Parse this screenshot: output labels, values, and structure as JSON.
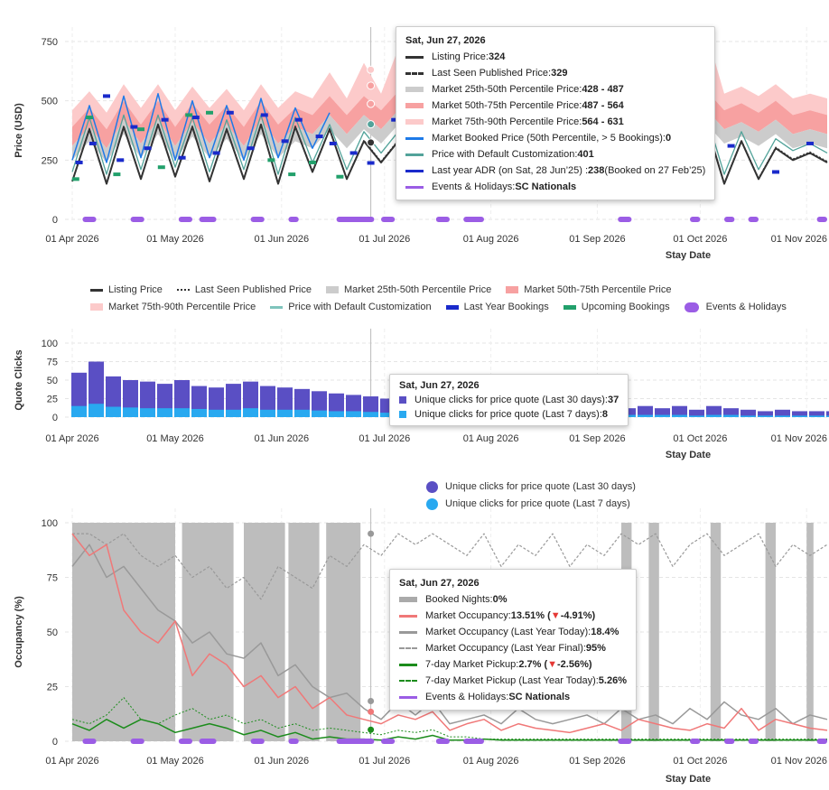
{
  "x_ticks": [
    "01 Apr 2026",
    "01 May 2026",
    "01 Jun 2026",
    "01 Jul 2026",
    "01 Aug 2026",
    "01 Sep 2026",
    "01 Oct 2026",
    "01 Nov 2026"
  ],
  "x_axis_label": "Stay Date",
  "hover_day_label": "Sat, Jun 27, 2026",
  "colors": {
    "listing": "#333333",
    "p25_50": "#cccccc",
    "p50_75": "#f7a1a1",
    "p75_90": "#fccaca",
    "booked": "#1e7ae8",
    "default_custom": "#52a39a",
    "last_year": "#1a2acb",
    "upcoming": "#22a06b",
    "events": "#9b5de5",
    "clicks30": "#5a4fc4",
    "clicks7": "#29a9f0",
    "mkt_occ": "#f07878",
    "ly_today": "#999999",
    "pickup": "#1c8c1c"
  },
  "chart_data": [
    {
      "type": "line",
      "title": "",
      "ylabel": "Price (USD)",
      "xlabel": "Stay Date",
      "ylim": [
        0,
        820
      ],
      "y_ticks": [
        "0",
        "250",
        "500",
        "750"
      ],
      "grid": true,
      "x_day_step": 5,
      "x_start": "2026-04-01",
      "series": {
        "listing": [
          160,
          380,
          150,
          390,
          170,
          400,
          180,
          390,
          160,
          380,
          170,
          400,
          150,
          390,
          200,
          380,
          170,
          330,
          240,
          330,
          250,
          324,
          240,
          260,
          250,
          270,
          240,
          250,
          230,
          260,
          250,
          240,
          260,
          250,
          280,
          260,
          170,
          390,
          150,
          330,
          170,
          300,
          250,
          280,
          240
        ],
        "p25": [
          250,
          330,
          240,
          360,
          260,
          360,
          250,
          350,
          260,
          340,
          250,
          360,
          260,
          330,
          300,
          380,
          300,
          380,
          320,
          400,
          400,
          428,
          330,
          300,
          280,
          300,
          290,
          270,
          280,
          300,
          290,
          270,
          300,
          320,
          320,
          300,
          300,
          400,
          320,
          350,
          310,
          360,
          300,
          320,
          300
        ],
        "p50": [
          310,
          390,
          300,
          420,
          320,
          420,
          310,
          410,
          320,
          400,
          310,
          420,
          320,
          390,
          360,
          440,
          360,
          440,
          380,
          460,
          460,
          487,
          390,
          360,
          340,
          360,
          350,
          330,
          340,
          360,
          350,
          330,
          360,
          380,
          380,
          360,
          360,
          460,
          380,
          410,
          370,
          420,
          360,
          380,
          360
        ],
        "p75": [
          390,
          470,
          380,
          500,
          400,
          500,
          390,
          490,
          400,
          480,
          390,
          500,
          400,
          470,
          440,
          520,
          440,
          520,
          460,
          540,
          540,
          564,
          470,
          440,
          420,
          440,
          430,
          410,
          420,
          440,
          430,
          410,
          440,
          460,
          460,
          440,
          440,
          540,
          460,
          490,
          450,
          500,
          440,
          460,
          440
        ],
        "p90": [
          460,
          540,
          450,
          570,
          470,
          570,
          460,
          560,
          470,
          550,
          460,
          570,
          470,
          540,
          510,
          620,
          510,
          660,
          530,
          720,
          610,
          631,
          540,
          510,
          490,
          510,
          500,
          480,
          490,
          510,
          500,
          480,
          510,
          530,
          530,
          510,
          510,
          780,
          530,
          560,
          520,
          570,
          510,
          530,
          510
        ],
        "default_custom": [
          200,
          430,
          190,
          440,
          210,
          440,
          220,
          430,
          200,
          420,
          210,
          440,
          190,
          430,
          240,
          400,
          210,
          370,
          280,
          370,
          290,
          401,
          280,
          300,
          290,
          310,
          280,
          290,
          270,
          300,
          290,
          280,
          300,
          290,
          320,
          300,
          210,
          430,
          190,
          370,
          210,
          340,
          290,
          320,
          280
        ],
        "booked": [
          250,
          480,
          240,
          520,
          260,
          530,
          250,
          500,
          260,
          480,
          250,
          510,
          260,
          470,
          300,
          450
        ]
      },
      "last_year_bookings": [
        [
          2,
          240
        ],
        [
          6,
          320
        ],
        [
          10,
          520
        ],
        [
          14,
          250
        ],
        [
          18,
          390
        ],
        [
          22,
          300
        ],
        [
          27,
          420
        ],
        [
          32,
          260
        ],
        [
          36,
          430
        ],
        [
          42,
          280
        ],
        [
          46,
          450
        ],
        [
          52,
          300
        ],
        [
          56,
          440
        ],
        [
          62,
          330
        ],
        [
          66,
          420
        ],
        [
          72,
          350
        ],
        [
          76,
          320
        ],
        [
          82,
          280
        ],
        [
          87,
          238
        ],
        [
          94,
          420
        ],
        [
          160,
          300
        ],
        [
          175,
          350
        ],
        [
          192,
          310
        ],
        [
          205,
          200
        ],
        [
          215,
          320
        ]
      ],
      "upcoming_bookings": [
        [
          1,
          170
        ],
        [
          5,
          430
        ],
        [
          13,
          190
        ],
        [
          20,
          380
        ],
        [
          26,
          220
        ],
        [
          34,
          440
        ],
        [
          40,
          450
        ],
        [
          58,
          250
        ],
        [
          64,
          190
        ],
        [
          70,
          240
        ],
        [
          78,
          180
        ]
      ],
      "events": [
        [
          3,
          7
        ],
        [
          17,
          21
        ],
        [
          31,
          35
        ],
        [
          37,
          42
        ],
        [
          52,
          56
        ],
        [
          63,
          66
        ],
        [
          77,
          88
        ],
        [
          90,
          94
        ],
        [
          106,
          110
        ],
        [
          114,
          120
        ],
        [
          159,
          163
        ],
        [
          180,
          183
        ],
        [
          190,
          193
        ],
        [
          197,
          200
        ],
        [
          217,
          220
        ]
      ],
      "legend": [
        "Listing Price",
        "Last Seen Published Price",
        "Market 25th-50th Percentile Price",
        "Market 50th-75th Percentile Price",
        "Market 75th-90th Percentile Price",
        "Price with Default Customization",
        "Last Year Bookings",
        "Upcoming Bookings",
        "Events & Holidays"
      ],
      "tooltip": [
        {
          "label": "Listing Price: ",
          "value": "324"
        },
        {
          "label": "Last Seen Published Price: ",
          "value": "329"
        },
        {
          "label": "Market 25th-50th Percentile Price: ",
          "value": "428 - 487"
        },
        {
          "label": "Market 50th-75th Percentile Price: ",
          "value": "487 - 564"
        },
        {
          "label": "Market 75th-90th Percentile Price: ",
          "value": "564 - 631"
        },
        {
          "label": "Market Booked Price (50th Percentile, > 5 Bookings): ",
          "value": "0"
        },
        {
          "label": "Price with Default Customization: ",
          "value": "401"
        },
        {
          "label": "Last year ADR (on Sat, 28 Jun’25) : ",
          "value": "238",
          "extra": " (Booked on 27 Feb’25)"
        },
        {
          "label": "Events & Holidays: ",
          "value": "SC Nationals"
        }
      ]
    },
    {
      "type": "bar",
      "title": "",
      "ylabel": "Quote Clicks",
      "xlabel": "Stay Date",
      "ylim": [
        0,
        100
      ],
      "y_ticks": [
        "0",
        "25",
        "50",
        "75",
        "100"
      ],
      "series": {
        "clicks30": [
          60,
          75,
          55,
          50,
          48,
          45,
          50,
          42,
          40,
          45,
          48,
          42,
          40,
          38,
          35,
          32,
          30,
          28,
          25,
          37,
          20,
          15,
          10,
          10,
          10,
          10,
          8,
          8,
          8,
          8,
          10,
          10,
          12,
          15,
          12,
          15,
          10,
          15,
          12,
          10,
          8,
          10,
          8,
          8,
          8
        ],
        "clicks7": [
          15,
          18,
          14,
          13,
          12,
          12,
          12,
          11,
          10,
          10,
          12,
          10,
          10,
          10,
          9,
          8,
          8,
          7,
          6,
          8,
          5,
          3,
          2,
          2,
          2,
          2,
          2,
          2,
          2,
          2,
          2,
          2,
          3,
          3,
          3,
          3,
          2,
          3,
          3,
          2,
          2,
          2,
          2,
          2,
          2
        ]
      },
      "legend": [
        "Unique clicks for price quote (Last 30 days)",
        "Unique clicks for price quote (Last 7 days)"
      ],
      "tooltip": [
        {
          "label": "Unique clicks for price quote (Last 30 days): ",
          "value": "37"
        },
        {
          "label": "Unique clicks for price quote (Last 7 days): ",
          "value": "8"
        }
      ]
    },
    {
      "type": "line",
      "title": "",
      "ylabel": "Occupancy (%)",
      "xlabel": "Stay Date",
      "ylim": [
        0,
        100
      ],
      "y_ticks": [
        "0",
        "25",
        "50",
        "75",
        "100"
      ],
      "booked_nights": [
        [
          0,
          30
        ],
        [
          32,
          47
        ],
        [
          50,
          62
        ],
        [
          63,
          72
        ],
        [
          74,
          84
        ],
        [
          160,
          163
        ],
        [
          168,
          171
        ],
        [
          186,
          189
        ],
        [
          202,
          205
        ],
        [
          214,
          216
        ]
      ],
      "series": {
        "mkt_occ": [
          95,
          85,
          90,
          60,
          50,
          45,
          55,
          30,
          40,
          35,
          25,
          30,
          20,
          25,
          15,
          20,
          12,
          10,
          8,
          12,
          10,
          13.5,
          5,
          8,
          10,
          5,
          8,
          6,
          5,
          4,
          6,
          8,
          5,
          10,
          8,
          6,
          5,
          8,
          6,
          15,
          5,
          10,
          8,
          6,
          5
        ],
        "ly_today": [
          80,
          90,
          75,
          80,
          70,
          60,
          55,
          45,
          50,
          40,
          38,
          45,
          30,
          35,
          25,
          20,
          22,
          15,
          10,
          18,
          12,
          18.4,
          8,
          10,
          12,
          8,
          15,
          10,
          8,
          10,
          12,
          8,
          15,
          10,
          12,
          8,
          15,
          10,
          18,
          12,
          10,
          15,
          8,
          12,
          10
        ],
        "ly_final": [
          95,
          95,
          90,
          95,
          85,
          80,
          85,
          75,
          80,
          70,
          75,
          65,
          80,
          75,
          70,
          85,
          80,
          90,
          85,
          95,
          90,
          95,
          90,
          85,
          95,
          80,
          90,
          85,
          95,
          80,
          90,
          85,
          95,
          90,
          95,
          80,
          90,
          95,
          85,
          90,
          95,
          80,
          90,
          85,
          90
        ],
        "pickup": [
          8,
          5,
          10,
          6,
          10,
          8,
          4,
          6,
          8,
          6,
          3,
          5,
          2,
          4,
          1,
          2,
          1,
          1,
          0.5,
          2,
          1,
          2.7,
          0.5,
          0.5,
          1,
          0.5,
          0.5,
          0.5,
          0.5,
          0.5,
          0.5,
          0.5,
          0.5,
          0.5,
          0.5,
          0.5,
          0.5,
          0.5,
          0.5,
          0.5,
          0.5,
          0.5,
          0.5,
          0.5,
          0.5
        ],
        "pickup_ly": [
          10,
          8,
          12,
          20,
          10,
          8,
          12,
          15,
          10,
          12,
          8,
          10,
          6,
          8,
          5,
          6,
          5,
          4,
          3,
          5,
          4,
          5.26,
          2,
          2,
          1,
          1,
          1,
          1,
          1,
          1,
          1,
          1,
          1,
          1,
          1,
          1,
          1,
          1,
          1,
          1,
          1,
          1,
          1,
          1,
          1
        ]
      },
      "tooltip": [
        {
          "label": "Booked Nights: ",
          "value": "0%"
        },
        {
          "label": "Market Occupancy: ",
          "value": "13.51% (",
          "delta": "▼",
          "delta_value": "-4.91%)"
        },
        {
          "label": "Market Occupancy (Last Year Today): ",
          "value": "18.4%"
        },
        {
          "label": "Market Occupancy (Last Year Final): ",
          "value": "95%"
        },
        {
          "label": "7-day Market Pickup: ",
          "value": "2.7% (",
          "delta": "▼",
          "delta_value": "-2.56%)"
        },
        {
          "label": "7-day Market Pickup (Last Year Today): ",
          "value": "5.26%"
        },
        {
          "label": "Events & Holidays: ",
          "value": "SC Nationals"
        }
      ]
    }
  ]
}
